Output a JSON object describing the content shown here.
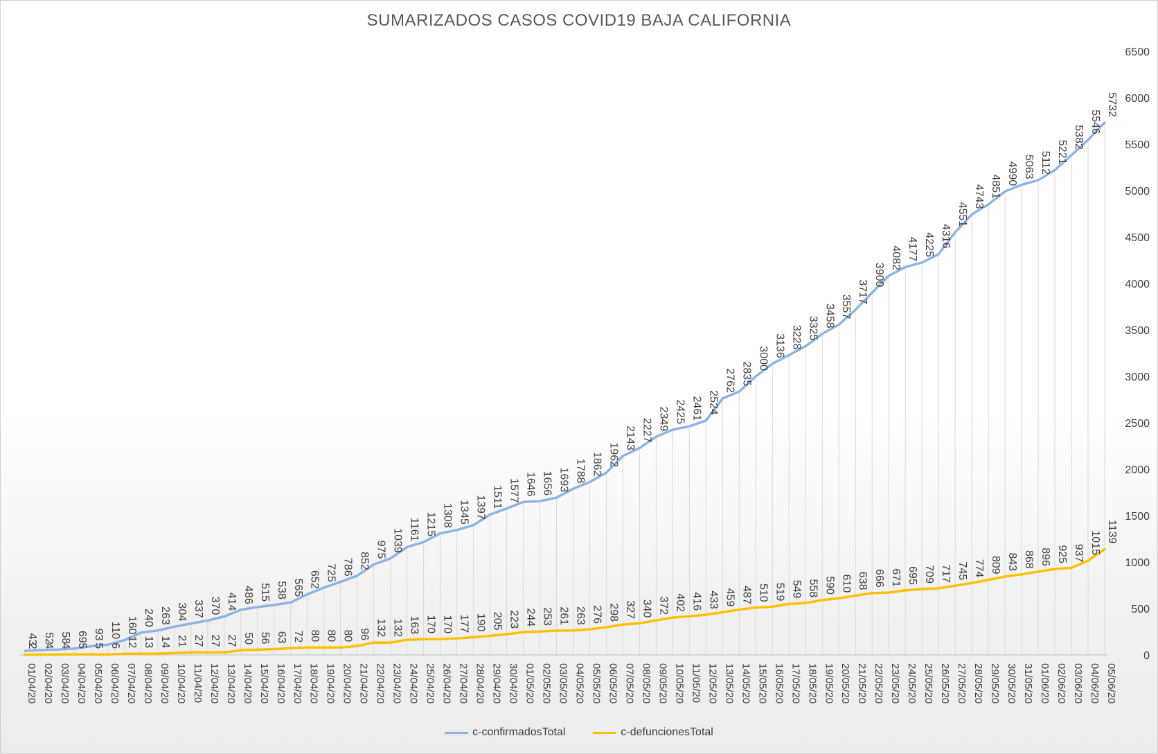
{
  "chart_data": {
    "type": "line",
    "title": "SUMARIZADOS  CASOS COVID19  BAJA  CALIFORNIA",
    "xlabel": "",
    "ylabel": "",
    "ylim": [
      0,
      6500
    ],
    "yticks": [
      "0",
      "500",
      "1000",
      "1500",
      "2000",
      "2500",
      "3000",
      "3500",
      "4000",
      "4500",
      "5000",
      "5500",
      "6000",
      "6500"
    ],
    "y_axis_position": "right",
    "grid": "vertical drop lines",
    "legend_position": "bottom",
    "x": [
      "01/04/20",
      "02/04/20",
      "03/04/20",
      "04/04/20",
      "05/04/20",
      "06/04/20",
      "07/04/20",
      "08/04/20",
      "09/04/20",
      "10/04/20",
      "11/04/20",
      "12/04/20",
      "13/04/20",
      "14/04/20",
      "15/04/20",
      "16/04/20",
      "17/04/20",
      "18/04/20",
      "19/04/20",
      "20/04/20",
      "21/04/20",
      "22/04/20",
      "23/04/20",
      "24/04/20",
      "25/04/20",
      "26/04/20",
      "27/04/20",
      "28/04/20",
      "29/04/20",
      "30/04/20",
      "01/05/20",
      "02/05/20",
      "03/05/20",
      "04/05/20",
      "05/05/20",
      "06/05/20",
      "07/05/20",
      "08/05/20",
      "09/05/20",
      "10/05/20",
      "11/05/20",
      "12/05/20",
      "13/05/20",
      "14/05/20",
      "15/05/20",
      "16/05/20",
      "17/05/20",
      "18/05/20",
      "19/05/20",
      "20/05/20",
      "21/05/20",
      "22/05/20",
      "23/05/20",
      "24/05/20",
      "25/05/20",
      "26/05/20",
      "27/05/20",
      "28/05/20",
      "29/05/20",
      "30/05/20",
      "31/05/20",
      "01/06/20",
      "02/06/20",
      "03/06/20",
      "04/06/20",
      "05/06/20"
    ],
    "series": [
      {
        "name": "c-confirmadosTotal",
        "color": "#8eb4e3",
        "values": [
          43,
          52,
          58,
          69,
          93,
          110,
          160,
          240,
          263,
          304,
          337,
          370,
          414,
          486,
          515,
          538,
          565,
          652,
          725,
          786,
          852,
          975,
          1039,
          1161,
          1215,
          1308,
          1345,
          1397,
          1511,
          1577,
          1646,
          1656,
          1693,
          1788,
          1862,
          1962,
          2143,
          2227,
          2349,
          2425,
          2461,
          2524,
          2762,
          2835,
          3000,
          3136,
          3228,
          3325,
          3458,
          3557,
          3717,
          3900,
          4082,
          4177,
          4225,
          4316,
          4551,
          4743,
          4851,
          4990,
          5063,
          5112,
          5221,
          5382,
          5546,
          5732
        ]
      },
      {
        "name": "c-defuncionesTotal",
        "color": "#ffc000",
        "values": [
          2,
          4,
          4,
          5,
          5,
          6,
          12,
          13,
          14,
          21,
          27,
          27,
          27,
          50,
          56,
          63,
          72,
          80,
          80,
          80,
          96,
          132,
          132,
          163,
          170,
          170,
          177,
          190,
          205,
          223,
          244,
          253,
          261,
          263,
          276,
          298,
          327,
          340,
          372,
          402,
          416,
          433,
          459,
          487,
          510,
          519,
          549,
          558,
          590,
          610,
          638,
          666,
          671,
          695,
          709,
          717,
          745,
          774,
          809,
          843,
          868,
          896,
          925,
          937,
          1015,
          1139
        ]
      }
    ]
  }
}
